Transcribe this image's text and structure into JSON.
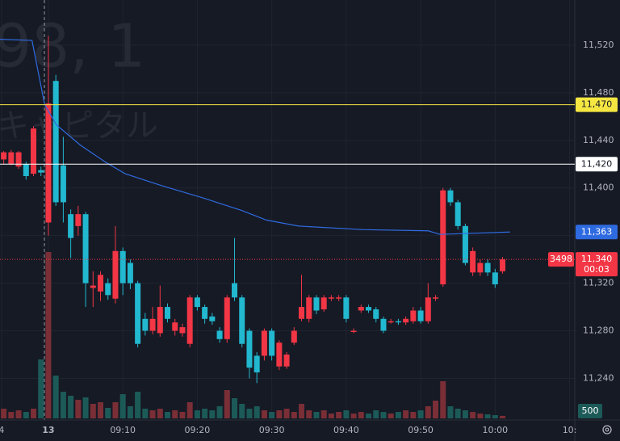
{
  "chart_data": {
    "type": "candlestick",
    "watermark": [
      "98, 1",
      "キャピタル"
    ],
    "x": [
      -6,
      -5,
      -4,
      -3,
      -2,
      -1,
      0,
      1,
      2,
      3,
      4,
      5,
      6,
      7,
      8,
      9,
      10,
      11,
      12,
      13,
      14,
      15,
      16,
      17,
      18,
      19,
      20,
      21,
      22,
      23,
      24,
      25,
      26,
      27,
      28,
      29,
      30,
      31,
      32,
      33,
      34,
      35,
      36,
      37,
      38,
      39,
      40,
      41,
      42,
      43,
      44,
      45,
      46,
      47,
      48,
      49,
      50,
      51,
      52,
      53,
      54,
      55,
      56,
      57,
      58,
      59,
      60,
      61
    ],
    "open": [
      11424,
      11420,
      11418,
      11420,
      11412,
      11415,
      11371,
      11490,
      11419,
      11378,
      11368,
      11378,
      11316,
      11313,
      11320,
      11307,
      11347,
      11337,
      11320,
      11290,
      11280,
      11278,
      11300,
      11280,
      11278,
      11269,
      11308,
      11300,
      11292,
      11280,
      11273,
      11320,
      11308,
      11280,
      11259,
      11259,
      11280,
      11250,
      11250,
      11270,
      11290,
      11290,
      11308,
      11298,
      11307,
      11307,
      11308,
      11279,
      11297,
      11300,
      11298,
      11290,
      11287,
      11288,
      11287,
      11288,
      11297,
      11288,
      11307,
      11319,
      11398,
      11388,
      11368,
      11329,
      11329,
      11337,
      11329,
      11330
    ],
    "high": [
      11431,
      11432,
      11431,
      11422,
      11452,
      11418,
      11528,
      11495,
      11443,
      11382,
      11385,
      11380,
      11330,
      11330,
      11324,
      11368,
      11350,
      11340,
      11322,
      11295,
      11300,
      11318,
      11303,
      11290,
      11286,
      11310,
      11310,
      11302,
      11295,
      11283,
      11310,
      11358,
      11310,
      11282,
      11262,
      11282,
      11282,
      11272,
      11262,
      11283,
      11327,
      11310,
      11310,
      11310,
      11310,
      11310,
      11310,
      11282,
      11302,
      11302,
      11300,
      11292,
      11290,
      11290,
      11292,
      11300,
      11300,
      11320,
      11310,
      11400,
      11400,
      11390,
      11370,
      11350,
      11340,
      11340,
      11332,
      11342
    ],
    "low": [
      11420,
      11419,
      11416,
      11407,
      11410,
      11410,
      11360,
      11385,
      11371,
      11341,
      11360,
      11300,
      11300,
      11305,
      11306,
      11303,
      11310,
      11315,
      11266,
      11276,
      11277,
      11275,
      11287,
      11276,
      11275,
      11266,
      11297,
      11286,
      11285,
      11270,
      11270,
      11305,
      11266,
      11240,
      11236,
      11255,
      11255,
      11247,
      11248,
      11268,
      11288,
      11287,
      11294,
      11296,
      11305,
      11305,
      11287,
      11278,
      11295,
      11295,
      11287,
      11278,
      11286,
      11285,
      11285,
      11286,
      11286,
      11286,
      11305,
      11317,
      11385,
      11365,
      11335,
      11326,
      11326,
      11326,
      11316,
      11328
    ],
    "close": [
      11430,
      11430,
      11430,
      11410,
      11450,
      11413,
      11471,
      11388,
      11388,
      11358,
      11378,
      11320,
      11318,
      11327,
      11310,
      11347,
      11320,
      11320,
      11269,
      11280,
      11290,
      11300,
      11290,
      11287,
      11283,
      11308,
      11300,
      11290,
      11288,
      11273,
      11308,
      11308,
      11269,
      11249,
      11245,
      11280,
      11259,
      11270,
      11260,
      11280,
      11300,
      11308,
      11297,
      11308,
      11308,
      11308,
      11290,
      11280,
      11300,
      11297,
      11290,
      11280,
      11288,
      11287,
      11290,
      11297,
      11288,
      11308,
      11308,
      11398,
      11388,
      11368,
      11337,
      11347,
      11337,
      11329,
      11319,
      11340
    ],
    "volume": [
      1920,
      1280,
      1600,
      1280,
      1920,
      11680,
      32960,
      8480,
      5280,
      4480,
      3680,
      4160,
      2880,
      3200,
      2080,
      3200,
      4800,
      2400,
      5280,
      1920,
      1600,
      1920,
      1280,
      1600,
      1280,
      3200,
      1600,
      1920,
      1600,
      2400,
      5600,
      4000,
      2880,
      1920,
      2400,
      1600,
      1280,
      1600,
      1920,
      1280,
      2880,
      1600,
      1280,
      1600,
      960,
      1280,
      1600,
      960,
      1280,
      960,
      1600,
      1280,
      960,
      1280,
      1600,
      1280,
      1600,
      2400,
      3520,
      7360,
      2400,
      1920,
      1600,
      1280,
      960,
      800,
      640,
      500
    ],
    "up_color": "#f23645",
    "down_color": "#22b8cf",
    "up_volume_color": "#7a2e36",
    "down_volume_color": "#1c5a58",
    "vwap": {
      "color": "#2f6be0",
      "x": [
        -6.5,
        -2.2,
        -0.5,
        1.1,
        4.3,
        7.6,
        10.3,
        15.2,
        20.6,
        26,
        29.3,
        33.6,
        42.3,
        51,
        52.6,
        62
      ],
      "values": [
        11525,
        11524,
        11470,
        11453,
        11436,
        11422,
        11412,
        11402,
        11392,
        11381,
        11373,
        11368,
        11365,
        11364,
        11361,
        11363
      ],
      "value_label": "11,363"
    },
    "hlines": [
      {
        "value": 11470,
        "label": "11,470",
        "color": "#f5e642"
      },
      {
        "value": 11420,
        "label": "11,420",
        "color": "#ffffff"
      }
    ],
    "price_label": {
      "value": 11340,
      "label": "11,340",
      "countdown": "00:03",
      "tag": "3498"
    },
    "xlim": [
      -6.5,
      70.7
    ],
    "ylim": [
      11205,
      11558
    ],
    "yticks": [
      {
        "value": 11240,
        "label": "11,240"
      },
      {
        "value": 11280,
        "label": "11,280"
      },
      {
        "value": 11320,
        "label": "11,320"
      },
      {
        "value": 11360,
        "label": "11,360"
      },
      {
        "value": 11400,
        "label": "11,400"
      },
      {
        "value": 11440,
        "label": "11,440"
      },
      {
        "value": 11480,
        "label": "11,480"
      },
      {
        "value": 11520,
        "label": "11,520"
      }
    ],
    "xticks": [
      {
        "value": -6.3,
        "label": "4"
      },
      {
        "value": 0,
        "label": "13"
      },
      {
        "value": 10,
        "label": "09:10"
      },
      {
        "value": 20,
        "label": "09:20"
      },
      {
        "value": 30,
        "label": "09:30"
      },
      {
        "value": 40,
        "label": "09:40"
      },
      {
        "value": 50,
        "label": "09:50"
      },
      {
        "value": 60,
        "label": "10:00"
      },
      {
        "value": 70,
        "label": "10:"
      }
    ],
    "grid": true
  }
}
